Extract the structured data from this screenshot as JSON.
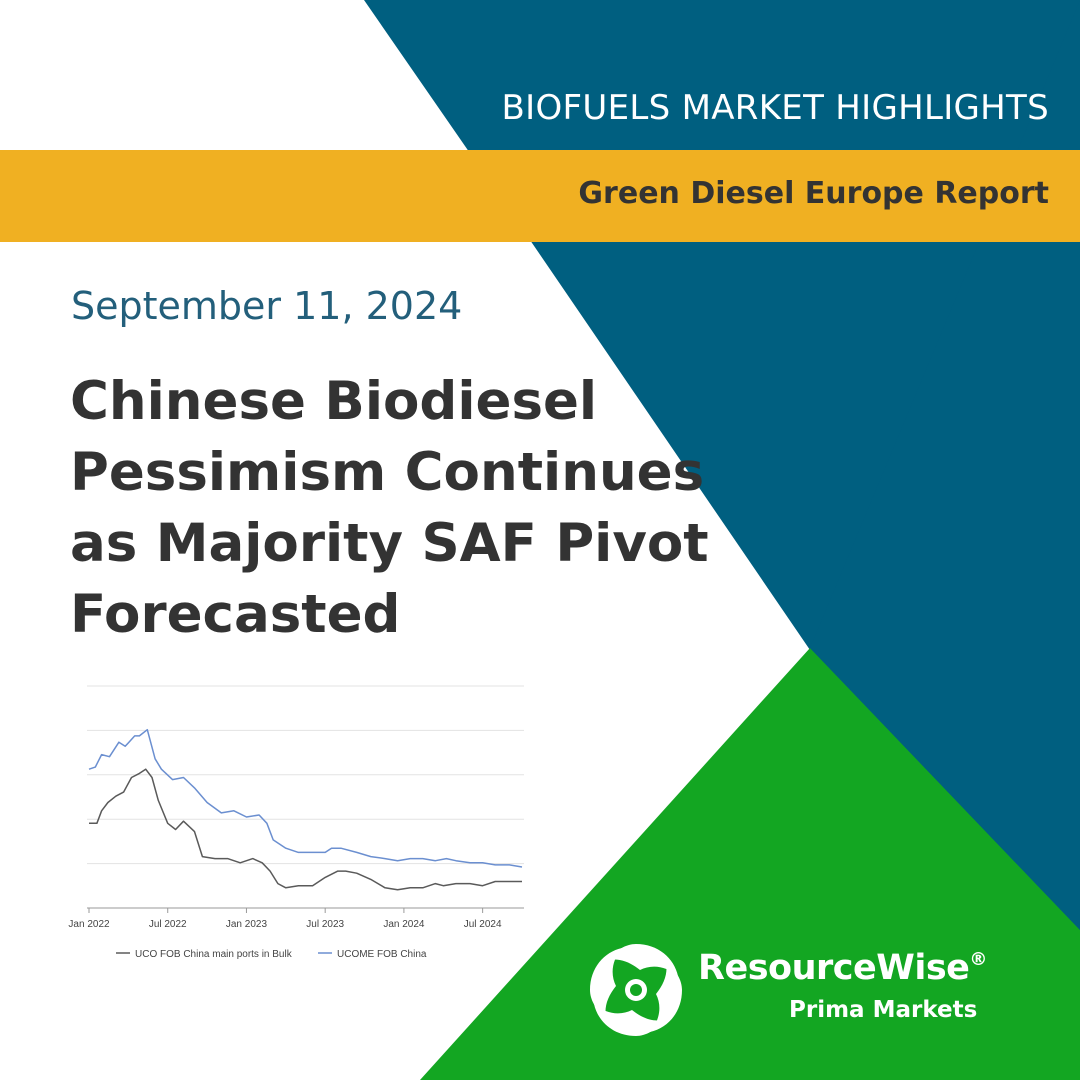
{
  "header": {
    "series_title": "BIOFUELS MARKET HIGHLIGHTS",
    "report_name": "Green Diesel Europe Report"
  },
  "date": "September 11, 2024",
  "headline": {
    "lines": [
      "Chinese Biodiesel",
      "Pessimism Continues",
      "as Majority SAF Pivot",
      "Forecasted"
    ]
  },
  "brand": {
    "name": "ResourceWise",
    "registered_mark": "®",
    "subtitle": "Prima Markets",
    "logo_icon": "resourcewise-swirl-icon"
  },
  "colors": {
    "navy": "#005f80",
    "gold": "#f0b022",
    "green": "#13a622",
    "text_dark": "#333333",
    "date_blue": "#235f7b",
    "series_uco": "#5a5a5a",
    "series_ucome": "#6b8fd0"
  },
  "chart_data": {
    "type": "line",
    "title": "",
    "xlabel": "",
    "ylabel": "",
    "x_ticks": [
      "Jan 2022",
      "Jul 2022",
      "Jan 2023",
      "Jul 2023",
      "Jan 2024",
      "Jul 2024"
    ],
    "y_ticks": [],
    "grid": true,
    "legend_position": "bottom",
    "x_range": [
      2022.0,
      2024.75
    ],
    "y_range": [
      0,
      100
    ],
    "series": [
      {
        "name": "UCO FOB China main ports in Bulk",
        "color": "#5a5a5a",
        "points": [
          [
            2022.0,
            34
          ],
          [
            2022.05,
            34
          ],
          [
            2022.08,
            40
          ],
          [
            2022.12,
            44
          ],
          [
            2022.17,
            47
          ],
          [
            2022.22,
            49
          ],
          [
            2022.27,
            56
          ],
          [
            2022.32,
            58
          ],
          [
            2022.36,
            60
          ],
          [
            2022.4,
            56
          ],
          [
            2022.44,
            45
          ],
          [
            2022.5,
            34
          ],
          [
            2022.55,
            31
          ],
          [
            2022.6,
            35
          ],
          [
            2022.67,
            30
          ],
          [
            2022.72,
            18
          ],
          [
            2022.8,
            17
          ],
          [
            2022.88,
            17
          ],
          [
            2022.96,
            15
          ],
          [
            2023.04,
            17
          ],
          [
            2023.1,
            15
          ],
          [
            2023.15,
            11
          ],
          [
            2023.2,
            5
          ],
          [
            2023.25,
            3
          ],
          [
            2023.33,
            4
          ],
          [
            2023.42,
            4
          ],
          [
            2023.5,
            8
          ],
          [
            2023.58,
            11
          ],
          [
            2023.63,
            11
          ],
          [
            2023.7,
            10
          ],
          [
            2023.79,
            7
          ],
          [
            2023.88,
            3
          ],
          [
            2023.96,
            2
          ],
          [
            2024.04,
            3
          ],
          [
            2024.12,
            3
          ],
          [
            2024.2,
            5
          ],
          [
            2024.25,
            4
          ],
          [
            2024.33,
            5
          ],
          [
            2024.42,
            5
          ],
          [
            2024.5,
            4
          ],
          [
            2024.58,
            6
          ],
          [
            2024.67,
            6
          ],
          [
            2024.75,
            6
          ]
        ]
      },
      {
        "name": "UCOME FOB China",
        "color": "#6b8fd0",
        "points": [
          [
            2022.0,
            60
          ],
          [
            2022.04,
            61
          ],
          [
            2022.08,
            67
          ],
          [
            2022.13,
            66
          ],
          [
            2022.19,
            73
          ],
          [
            2022.23,
            71
          ],
          [
            2022.29,
            76
          ],
          [
            2022.32,
            76
          ],
          [
            2022.37,
            79
          ],
          [
            2022.42,
            65
          ],
          [
            2022.46,
            60
          ],
          [
            2022.53,
            55
          ],
          [
            2022.6,
            56
          ],
          [
            2022.67,
            51
          ],
          [
            2022.75,
            44
          ],
          [
            2022.84,
            39
          ],
          [
            2022.92,
            40
          ],
          [
            2023.0,
            37
          ],
          [
            2023.08,
            38
          ],
          [
            2023.13,
            34
          ],
          [
            2023.17,
            26
          ],
          [
            2023.25,
            22
          ],
          [
            2023.33,
            20
          ],
          [
            2023.42,
            20
          ],
          [
            2023.5,
            20
          ],
          [
            2023.54,
            22
          ],
          [
            2023.6,
            22
          ],
          [
            2023.7,
            20
          ],
          [
            2023.79,
            18
          ],
          [
            2023.88,
            17
          ],
          [
            2023.96,
            16
          ],
          [
            2024.04,
            17
          ],
          [
            2024.12,
            17
          ],
          [
            2024.2,
            16
          ],
          [
            2024.27,
            17
          ],
          [
            2024.33,
            16
          ],
          [
            2024.42,
            15
          ],
          [
            2024.5,
            15
          ],
          [
            2024.58,
            14
          ],
          [
            2024.67,
            14
          ],
          [
            2024.75,
            13
          ]
        ]
      }
    ]
  }
}
